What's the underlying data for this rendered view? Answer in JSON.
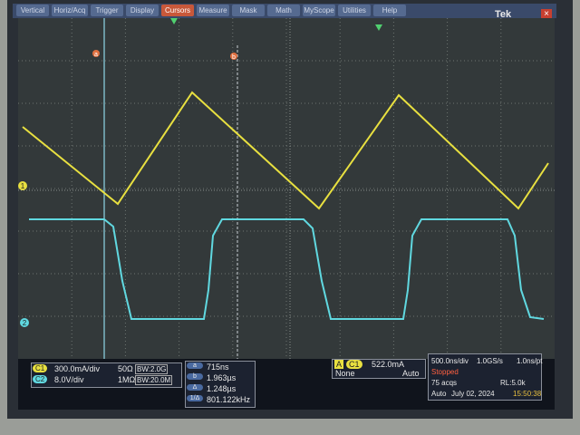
{
  "menu": {
    "items": [
      "Vertical",
      "Horiz/Acq",
      "Trigger",
      "Display",
      "Cursors",
      "Measure",
      "Mask",
      "Math",
      "MyScope",
      "Utilities",
      "Help"
    ],
    "brand": "Tek"
  },
  "markers": {
    "cursor_a": "a",
    "cursor_b": "b",
    "ch1": "1",
    "ch2": "2"
  },
  "channels": [
    {
      "label": "C1",
      "scale": "300.0mA/div",
      "impedance": "50Ω",
      "bandwidth": "BW:2.0G"
    },
    {
      "label": "C2",
      "scale": "8.0V/div",
      "impedance": "1MΩ",
      "bandwidth": "BW:20.0M"
    }
  ],
  "cursor_readout": {
    "rows": [
      {
        "label": "a",
        "value": "715ns"
      },
      {
        "label": "b",
        "value": "1.963µs"
      },
      {
        "label": "Δ",
        "value": "1.248µs"
      },
      {
        "label": "1/Δ",
        "value": "801.122kHz"
      }
    ]
  },
  "trigger": {
    "mode": "A",
    "source": "C1",
    "level": "522.0mA",
    "coupling": "None",
    "type": "Auto"
  },
  "acquisition": {
    "timebase": "500.0ns/div",
    "sample_rate": "1.0GS/s",
    "resolution": "1.0ns/pt",
    "status": "Stopped",
    "count": "75 acqs",
    "record_length": "RL:5.0k",
    "mode": "Auto",
    "date": "July 02, 2024",
    "time": "15:50:38"
  }
}
